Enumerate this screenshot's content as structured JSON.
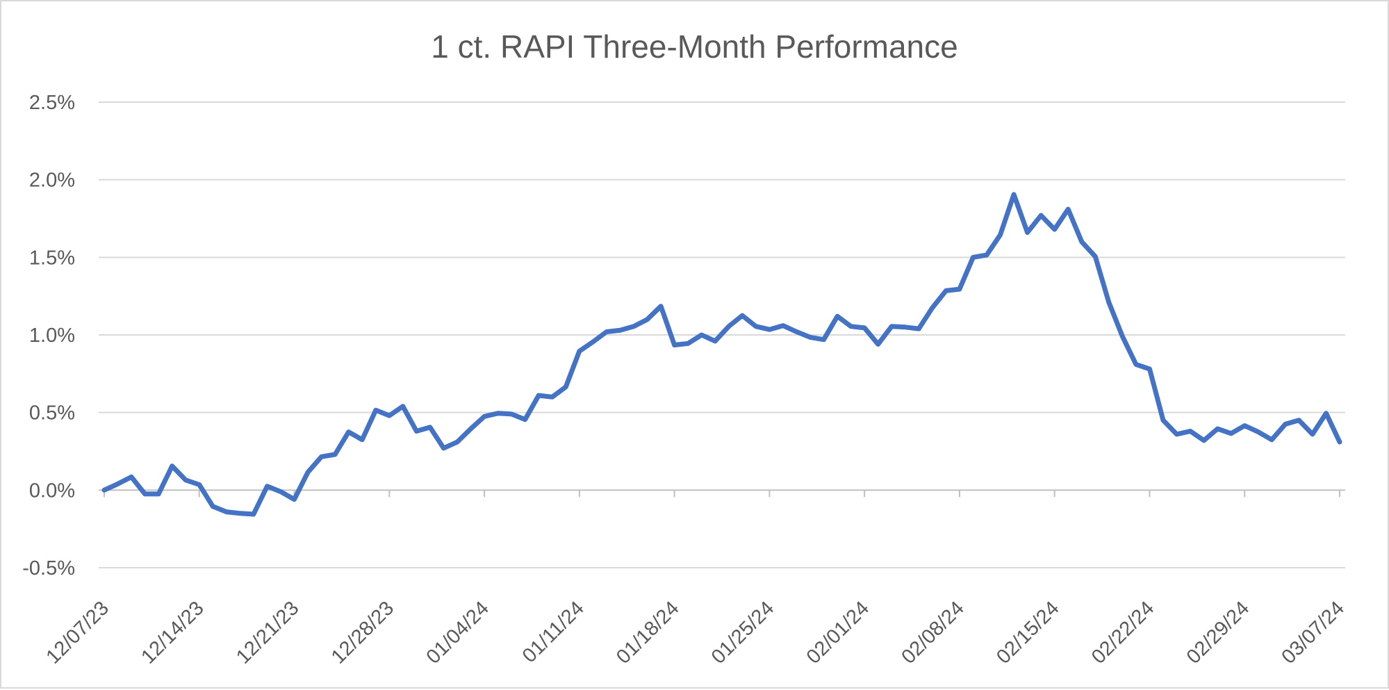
{
  "chart_data": {
    "type": "line",
    "title": "1 ct. RAPI Three-Month Performance",
    "xlabel": "",
    "ylabel": "",
    "ylim": [
      -0.5,
      2.5
    ],
    "y_ticks": [
      {
        "value": 2.5,
        "label": "2.5%"
      },
      {
        "value": 2.0,
        "label": "2.0%"
      },
      {
        "value": 1.5,
        "label": "1.5%"
      },
      {
        "value": 1.0,
        "label": "1.0%"
      },
      {
        "value": 0.5,
        "label": "0.5%"
      },
      {
        "value": 0.0,
        "label": "0.0%"
      },
      {
        "value": -0.5,
        "label": "-0.5%"
      }
    ],
    "x_tick_labels": [
      "12/07/23",
      "12/14/23",
      "12/21/23",
      "12/28/23",
      "01/04/24",
      "01/11/24",
      "01/18/24",
      "01/25/24",
      "02/01/24",
      "02/08/24",
      "02/15/24",
      "02/22/24",
      "02/29/24",
      "03/07/24"
    ],
    "grid": true,
    "legend": "none",
    "line_color": "#4472C4",
    "series": [
      {
        "x": [
          "12/07/23",
          "12/08/23",
          "12/09/23",
          "12/10/23",
          "12/11/23",
          "12/12/23",
          "12/13/23",
          "12/14/23",
          "12/15/23",
          "12/16/23",
          "12/17/23",
          "12/18/23",
          "12/19/23",
          "12/20/23",
          "12/21/23",
          "12/22/23",
          "12/23/23",
          "12/24/23",
          "12/25/23",
          "12/26/23",
          "12/27/23",
          "12/28/23",
          "12/29/23",
          "12/30/23",
          "12/31/23",
          "01/01/24",
          "01/02/24",
          "01/03/24",
          "01/04/24",
          "01/05/24",
          "01/06/24",
          "01/07/24",
          "01/08/24",
          "01/09/24",
          "01/10/24",
          "01/11/24",
          "01/12/24",
          "01/13/24",
          "01/14/24",
          "01/15/24",
          "01/16/24",
          "01/17/24",
          "01/18/24",
          "01/19/24",
          "01/20/24",
          "01/21/24",
          "01/22/24",
          "01/23/24",
          "01/24/24",
          "01/25/24",
          "01/26/24",
          "01/27/24",
          "01/28/24",
          "01/29/24",
          "01/30/24",
          "01/31/24",
          "02/01/24",
          "02/02/24",
          "02/03/24",
          "02/04/24",
          "02/05/24",
          "02/06/24",
          "02/07/24",
          "02/08/24",
          "02/09/24",
          "02/10/24",
          "02/11/24",
          "02/12/24",
          "02/13/24",
          "02/14/24",
          "02/15/24",
          "02/16/24",
          "02/17/24",
          "02/18/24",
          "02/19/24",
          "02/20/24",
          "02/21/24",
          "02/22/24",
          "02/23/24",
          "02/24/24",
          "02/25/24",
          "02/26/24",
          "02/27/24",
          "02/28/24",
          "02/29/24",
          "03/01/24",
          "03/02/24",
          "03/03/24",
          "03/04/24",
          "03/05/24",
          "03/06/24",
          "03/07/24"
        ],
        "values": [
          0.0,
          0.04,
          0.085,
          -0.025,
          -0.025,
          0.155,
          0.065,
          0.035,
          -0.105,
          -0.14,
          -0.15,
          -0.155,
          0.025,
          -0.01,
          -0.06,
          0.115,
          0.215,
          0.23,
          0.375,
          0.325,
          0.515,
          0.48,
          0.54,
          0.38,
          0.405,
          0.27,
          0.31,
          0.395,
          0.475,
          0.495,
          0.49,
          0.455,
          0.61,
          0.6,
          0.665,
          0.895,
          0.955,
          1.02,
          1.03,
          1.055,
          1.1,
          1.185,
          0.935,
          0.945,
          1.0,
          0.96,
          1.055,
          1.125,
          1.055,
          1.035,
          1.06,
          1.02,
          0.985,
          0.97,
          1.12,
          1.055,
          1.045,
          0.94,
          1.055,
          1.05,
          1.04,
          1.175,
          1.285,
          1.295,
          1.5,
          1.515,
          1.645,
          1.905,
          1.66,
          1.77,
          1.68,
          1.81,
          1.6,
          1.505,
          1.21,
          0.99,
          0.81,
          0.78,
          0.45,
          0.36,
          0.38,
          0.32,
          0.395,
          0.365,
          0.415,
          0.375,
          0.325,
          0.425,
          0.45,
          0.36,
          0.495,
          0.31
        ]
      }
    ]
  }
}
